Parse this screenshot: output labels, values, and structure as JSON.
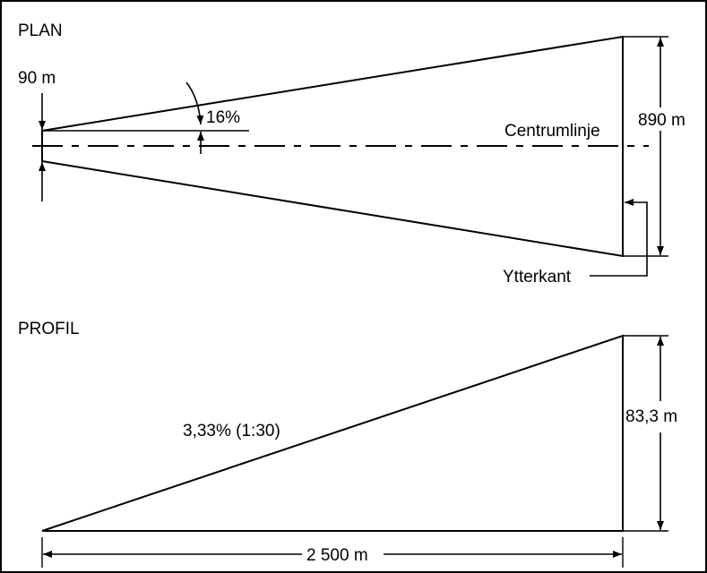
{
  "plan": {
    "title": "PLAN",
    "inner_width": "90 m",
    "divergence": "16%",
    "centerline": "Centrumlinje",
    "outer_width": "890 m",
    "outer_edge": "Ytterkant"
  },
  "profile": {
    "title": "PROFIL",
    "slope": "3,33% (1:30)",
    "height": "83,3 m",
    "length": "2 500 m"
  }
}
